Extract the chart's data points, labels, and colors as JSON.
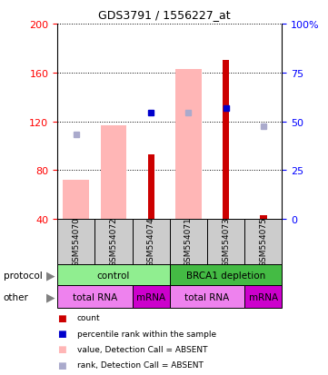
{
  "title": "GDS3791 / 1556227_at",
  "samples": [
    "GSM554070",
    "GSM554072",
    "GSM554074",
    "GSM554071",
    "GSM554073",
    "GSM554075"
  ],
  "ylim_left": [
    40,
    200
  ],
  "ylim_right": [
    0,
    100
  ],
  "yticks_left": [
    40,
    80,
    120,
    160,
    200
  ],
  "yticks_right": [
    0,
    25,
    50,
    75,
    100
  ],
  "ytick_labels_right": [
    "0",
    "25",
    "50",
    "75",
    "100%"
  ],
  "bars_pink": [
    72,
    117,
    null,
    163,
    null,
    null
  ],
  "bars_red": [
    null,
    null,
    93,
    null,
    170,
    43
  ],
  "dots_blue": [
    null,
    null,
    127,
    null,
    131,
    null
  ],
  "dots_lightblue": [
    109,
    null,
    null,
    127,
    null,
    116
  ],
  "color_pink": "#FFB6B6",
  "color_red": "#CC0000",
  "color_blue": "#0000CC",
  "color_lightblue": "#AAAACC",
  "color_green_control": "#90EE90",
  "color_green_brca": "#44BB44",
  "color_magenta_light": "#EE82EE",
  "color_magenta_dark": "#CC00CC",
  "color_gray": "#CCCCCC",
  "protocol_info": [
    {
      "span": [
        0,
        3
      ],
      "label": "control",
      "color": "#90EE90"
    },
    {
      "span": [
        3,
        6
      ],
      "label": "BRCA1 depletion",
      "color": "#44BB44"
    }
  ],
  "other_info": [
    {
      "span": [
        0,
        2
      ],
      "label": "total RNA",
      "color": "#EE82EE"
    },
    {
      "span": [
        2,
        3
      ],
      "label": "mRNA",
      "color": "#CC00CC"
    },
    {
      "span": [
        3,
        5
      ],
      "label": "total RNA",
      "color": "#EE82EE"
    },
    {
      "span": [
        5,
        6
      ],
      "label": "mRNA",
      "color": "#CC00CC"
    }
  ],
  "legend_items": [
    {
      "color": "#CC0000",
      "label": "count"
    },
    {
      "color": "#0000CC",
      "label": "percentile rank within the sample"
    },
    {
      "color": "#FFB6B6",
      "label": "value, Detection Call = ABSENT"
    },
    {
      "color": "#AAAACC",
      "label": "rank, Detection Call = ABSENT"
    }
  ]
}
